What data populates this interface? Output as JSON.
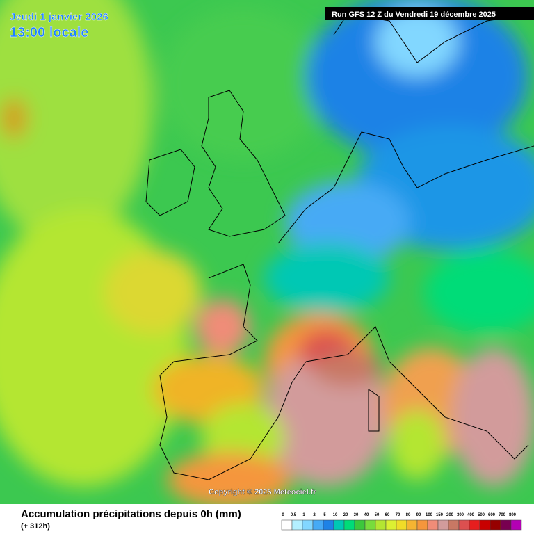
{
  "header": {
    "date": "Jeudi 1 janvier 2026",
    "time": "13:00 locale",
    "run": "Run GFS 12 Z du Vendredi 19 décembre 2025"
  },
  "copyright": "Copyright © 2025 Meteociel.fr",
  "footer": {
    "title": "Accumulation précipitations depuis 0h (mm)",
    "subtitle": "(+ 312h)"
  },
  "legend": {
    "items": [
      {
        "label": "0",
        "color": "#ffffff"
      },
      {
        "label": "0.5",
        "color": "#b4f0ff"
      },
      {
        "label": "1",
        "color": "#82d7ff"
      },
      {
        "label": "2",
        "color": "#46aaf5"
      },
      {
        "label": "5",
        "color": "#1e82e6"
      },
      {
        "label": "10",
        "color": "#00c8b4"
      },
      {
        "label": "20",
        "color": "#00dc78"
      },
      {
        "label": "30",
        "color": "#3cc83c"
      },
      {
        "label": "40",
        "color": "#78dc3c"
      },
      {
        "label": "50",
        "color": "#b4e632"
      },
      {
        "label": "60",
        "color": "#dcf032"
      },
      {
        "label": "70",
        "color": "#f0dc28"
      },
      {
        "label": "80",
        "color": "#f5b432"
      },
      {
        "label": "90",
        "color": "#f5963c"
      },
      {
        "label": "100",
        "color": "#f08c78"
      },
      {
        "label": "150",
        "color": "#d29b9b"
      },
      {
        "label": "200",
        "color": "#c87864"
      },
      {
        "label": "300",
        "color": "#dc5050"
      },
      {
        "label": "400",
        "color": "#e61e1e"
      },
      {
        "label": "500",
        "color": "#c80000"
      },
      {
        "label": "600",
        "color": "#960000"
      },
      {
        "label": "700",
        "color": "#780050"
      },
      {
        "label": "800",
        "color": "#b400b4"
      }
    ]
  }
}
